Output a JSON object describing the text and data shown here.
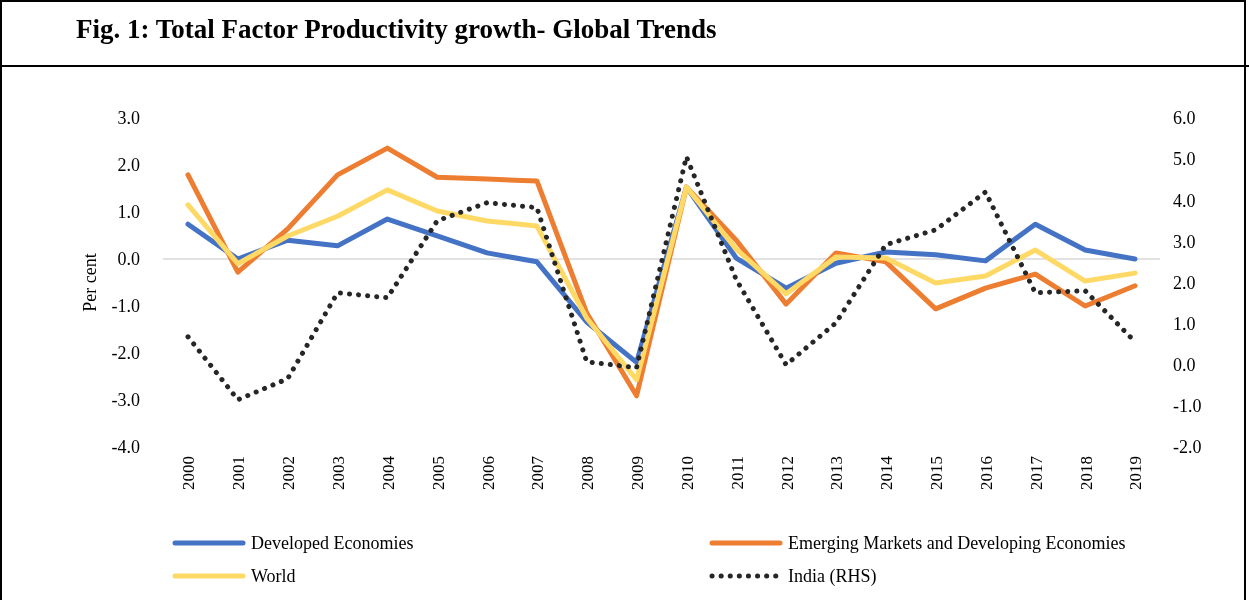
{
  "chart_data": {
    "type": "line",
    "title": "Fig. 1: Total Factor Productivity growth- Global Trends",
    "ylabel": "Per cent",
    "categories": [
      "2000",
      "2001",
      "2002",
      "2003",
      "2004",
      "2005",
      "2006",
      "2007",
      "2008",
      "2009",
      "2010",
      "2011",
      "2012",
      "2013",
      "2014",
      "2015",
      "2016",
      "2017",
      "2018",
      "2019"
    ],
    "ylim": [
      -4,
      3
    ],
    "yticks": [
      {
        "value": -4,
        "label": "-4.0"
      },
      {
        "value": -3,
        "label": "-3.0"
      },
      {
        "value": -2,
        "label": "-2.0"
      },
      {
        "value": -1,
        "label": "-1.0"
      },
      {
        "value": 0,
        "label": "0.0"
      },
      {
        "value": 1,
        "label": "1.0"
      },
      {
        "value": 2,
        "label": "2.0"
      },
      {
        "value": 3,
        "label": "3.0"
      }
    ],
    "y2lim": [
      -2,
      6
    ],
    "y2ticks": [
      {
        "value": -2,
        "label": "-2.0"
      },
      {
        "value": -1,
        "label": "-1.0"
      },
      {
        "value": 0,
        "label": "0.0"
      },
      {
        "value": 1,
        "label": "1.0"
      },
      {
        "value": 2,
        "label": "2.0"
      },
      {
        "value": 3,
        "label": "3.0"
      },
      {
        "value": 4,
        "label": "4.0"
      },
      {
        "value": 5,
        "label": "5.0"
      },
      {
        "value": 6,
        "label": "6.0"
      }
    ],
    "grid": false,
    "legend": "bottom",
    "marker": "none",
    "ref_lines": [
      {
        "axis": "y",
        "value": 0,
        "color": "#d9d9d9"
      }
    ],
    "series": [
      {
        "name": "Developed Economies",
        "color": "#4472c4",
        "line_style": "solid",
        "values": [
          0.74,
          0,
          0.4,
          0.28,
          0.85,
          0.49,
          0.13,
          -0.06,
          -1.34,
          -2.2,
          1.53,
          0.02,
          -0.62,
          -0.09,
          0.15,
          0.09,
          -0.04,
          0.74,
          0.19,
          0
        ]
      },
      {
        "name": "Emerging Markets and Developing Economies",
        "color": "#ed7d31",
        "line_style": "solid",
        "values": [
          1.79,
          -0.28,
          0.64,
          1.79,
          2.36,
          1.74,
          1.7,
          1.66,
          -1.15,
          -2.91,
          1.53,
          0.4,
          -0.96,
          0.13,
          -0.06,
          -1.06,
          -0.62,
          -0.32,
          -1,
          -0.57
        ]
      },
      {
        "name": "World",
        "color": "#ffd966",
        "line_style": "solid",
        "values": [
          1.15,
          -0.1,
          0.49,
          0.91,
          1.47,
          1.02,
          0.81,
          0.7,
          -1.26,
          -2.57,
          1.53,
          0.21,
          -0.74,
          0.04,
          0.02,
          -0.51,
          -0.36,
          0.19,
          -0.47,
          -0.3
        ]
      },
      {
        "name": "India (RHS)",
        "color": "#262626",
        "line_style": "dotted",
        "axis": "y2",
        "values": [
          0.68,
          -0.85,
          -0.34,
          1.75,
          1.63,
          3.5,
          3.94,
          3.82,
          0.07,
          -0.07,
          5.06,
          2.07,
          0,
          1.02,
          2.92,
          3.28,
          4.2,
          1.75,
          1.8,
          0.56
        ]
      }
    ]
  }
}
